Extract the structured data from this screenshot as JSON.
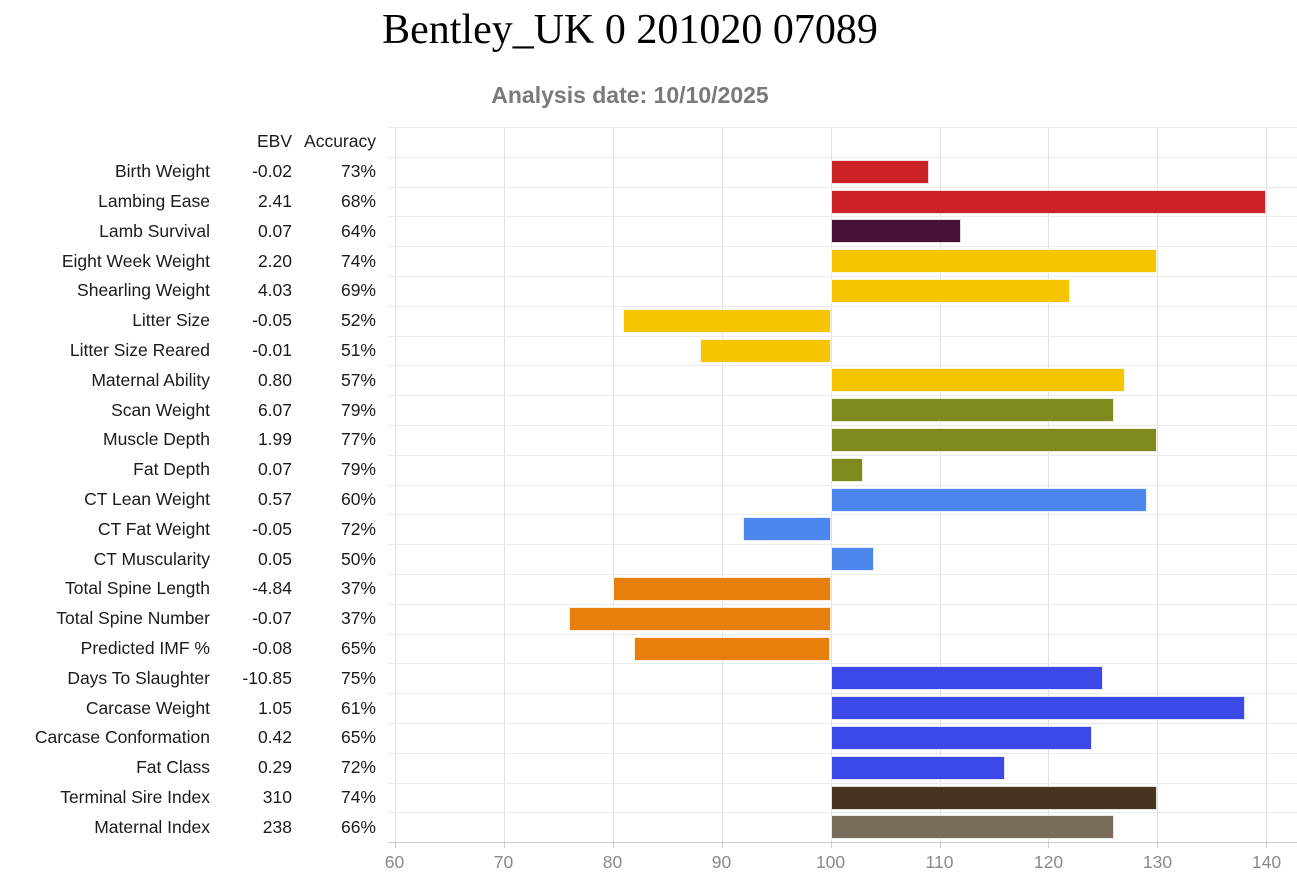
{
  "title": "Bentley_UK 0 201020 07089",
  "subtitle": "Analysis date: 10/10/2025",
  "table": {
    "headers": {
      "ebv": "EBV",
      "accuracy": "Accuracy"
    }
  },
  "chart_data": {
    "type": "bar",
    "orientation": "horizontal",
    "title": "Bentley_UK 0 201020 07089",
    "subtitle": "Analysis date: 10/10/2025",
    "baseline": 100,
    "xlim": [
      59.4,
      142.8
    ],
    "x_ticks": [
      60,
      70,
      80,
      90,
      100,
      110,
      120,
      130,
      140
    ],
    "grid": true,
    "legend": "none",
    "rows": [
      {
        "label": "Birth Weight",
        "ebv": "-0.02",
        "accuracy": "73%",
        "index_value": 109,
        "color": "#cb2127"
      },
      {
        "label": "Lambing Ease",
        "ebv": "2.41",
        "accuracy": "68%",
        "index_value": 140,
        "color": "#cb2127"
      },
      {
        "label": "Lamb Survival",
        "ebv": "0.07",
        "accuracy": "64%",
        "index_value": 112,
        "color": "#461235"
      },
      {
        "label": "Eight Week Weight",
        "ebv": "2.20",
        "accuracy": "74%",
        "index_value": 130,
        "color": "#f7c400"
      },
      {
        "label": "Shearling Weight",
        "ebv": "4.03",
        "accuracy": "69%",
        "index_value": 122,
        "color": "#f7c400"
      },
      {
        "label": "Litter Size",
        "ebv": "-0.05",
        "accuracy": "52%",
        "index_value": 81,
        "color": "#f7c400"
      },
      {
        "label": "Litter Size Reared",
        "ebv": "-0.01",
        "accuracy": "51%",
        "index_value": 88,
        "color": "#f7c400"
      },
      {
        "label": "Maternal Ability",
        "ebv": "0.80",
        "accuracy": "57%",
        "index_value": 127,
        "color": "#f7c400"
      },
      {
        "label": "Scan Weight",
        "ebv": "6.07",
        "accuracy": "79%",
        "index_value": 126,
        "color": "#7f8a1e"
      },
      {
        "label": "Muscle Depth",
        "ebv": "1.99",
        "accuracy": "77%",
        "index_value": 130,
        "color": "#7f8a1e"
      },
      {
        "label": "Fat Depth",
        "ebv": "0.07",
        "accuracy": "79%",
        "index_value": 103,
        "color": "#7f8a1e"
      },
      {
        "label": "CT Lean Weight",
        "ebv": "0.57",
        "accuracy": "60%",
        "index_value": 129,
        "color": "#4d86ec"
      },
      {
        "label": "CT Fat Weight",
        "ebv": "-0.05",
        "accuracy": "72%",
        "index_value": 92,
        "color": "#4d86ec"
      },
      {
        "label": "CT Muscularity",
        "ebv": "0.05",
        "accuracy": "50%",
        "index_value": 104,
        "color": "#4d86ec"
      },
      {
        "label": "Total Spine Length",
        "ebv": "-4.84",
        "accuracy": "37%",
        "index_value": 80,
        "color": "#e87f0c"
      },
      {
        "label": "Total Spine Number",
        "ebv": "-0.07",
        "accuracy": "37%",
        "index_value": 76,
        "color": "#e87f0c"
      },
      {
        "label": "Predicted IMF %",
        "ebv": "-0.08",
        "accuracy": "65%",
        "index_value": 82,
        "color": "#e87f0c"
      },
      {
        "label": "Days To Slaughter",
        "ebv": "-10.85",
        "accuracy": "75%",
        "index_value": 125,
        "color": "#3a49e8"
      },
      {
        "label": "Carcase Weight",
        "ebv": "1.05",
        "accuracy": "61%",
        "index_value": 138,
        "color": "#3a49e8"
      },
      {
        "label": "Carcase Conformation",
        "ebv": "0.42",
        "accuracy": "65%",
        "index_value": 124,
        "color": "#3a49e8"
      },
      {
        "label": "Fat Class",
        "ebv": "0.29",
        "accuracy": "72%",
        "index_value": 116,
        "color": "#3a49e8"
      },
      {
        "label": "Terminal Sire Index",
        "ebv": "310",
        "accuracy": "74%",
        "index_value": 130,
        "color": "#463420"
      },
      {
        "label": "Maternal Index",
        "ebv": "238",
        "accuracy": "66%",
        "index_value": 126,
        "color": "#7a6c5a"
      }
    ]
  }
}
